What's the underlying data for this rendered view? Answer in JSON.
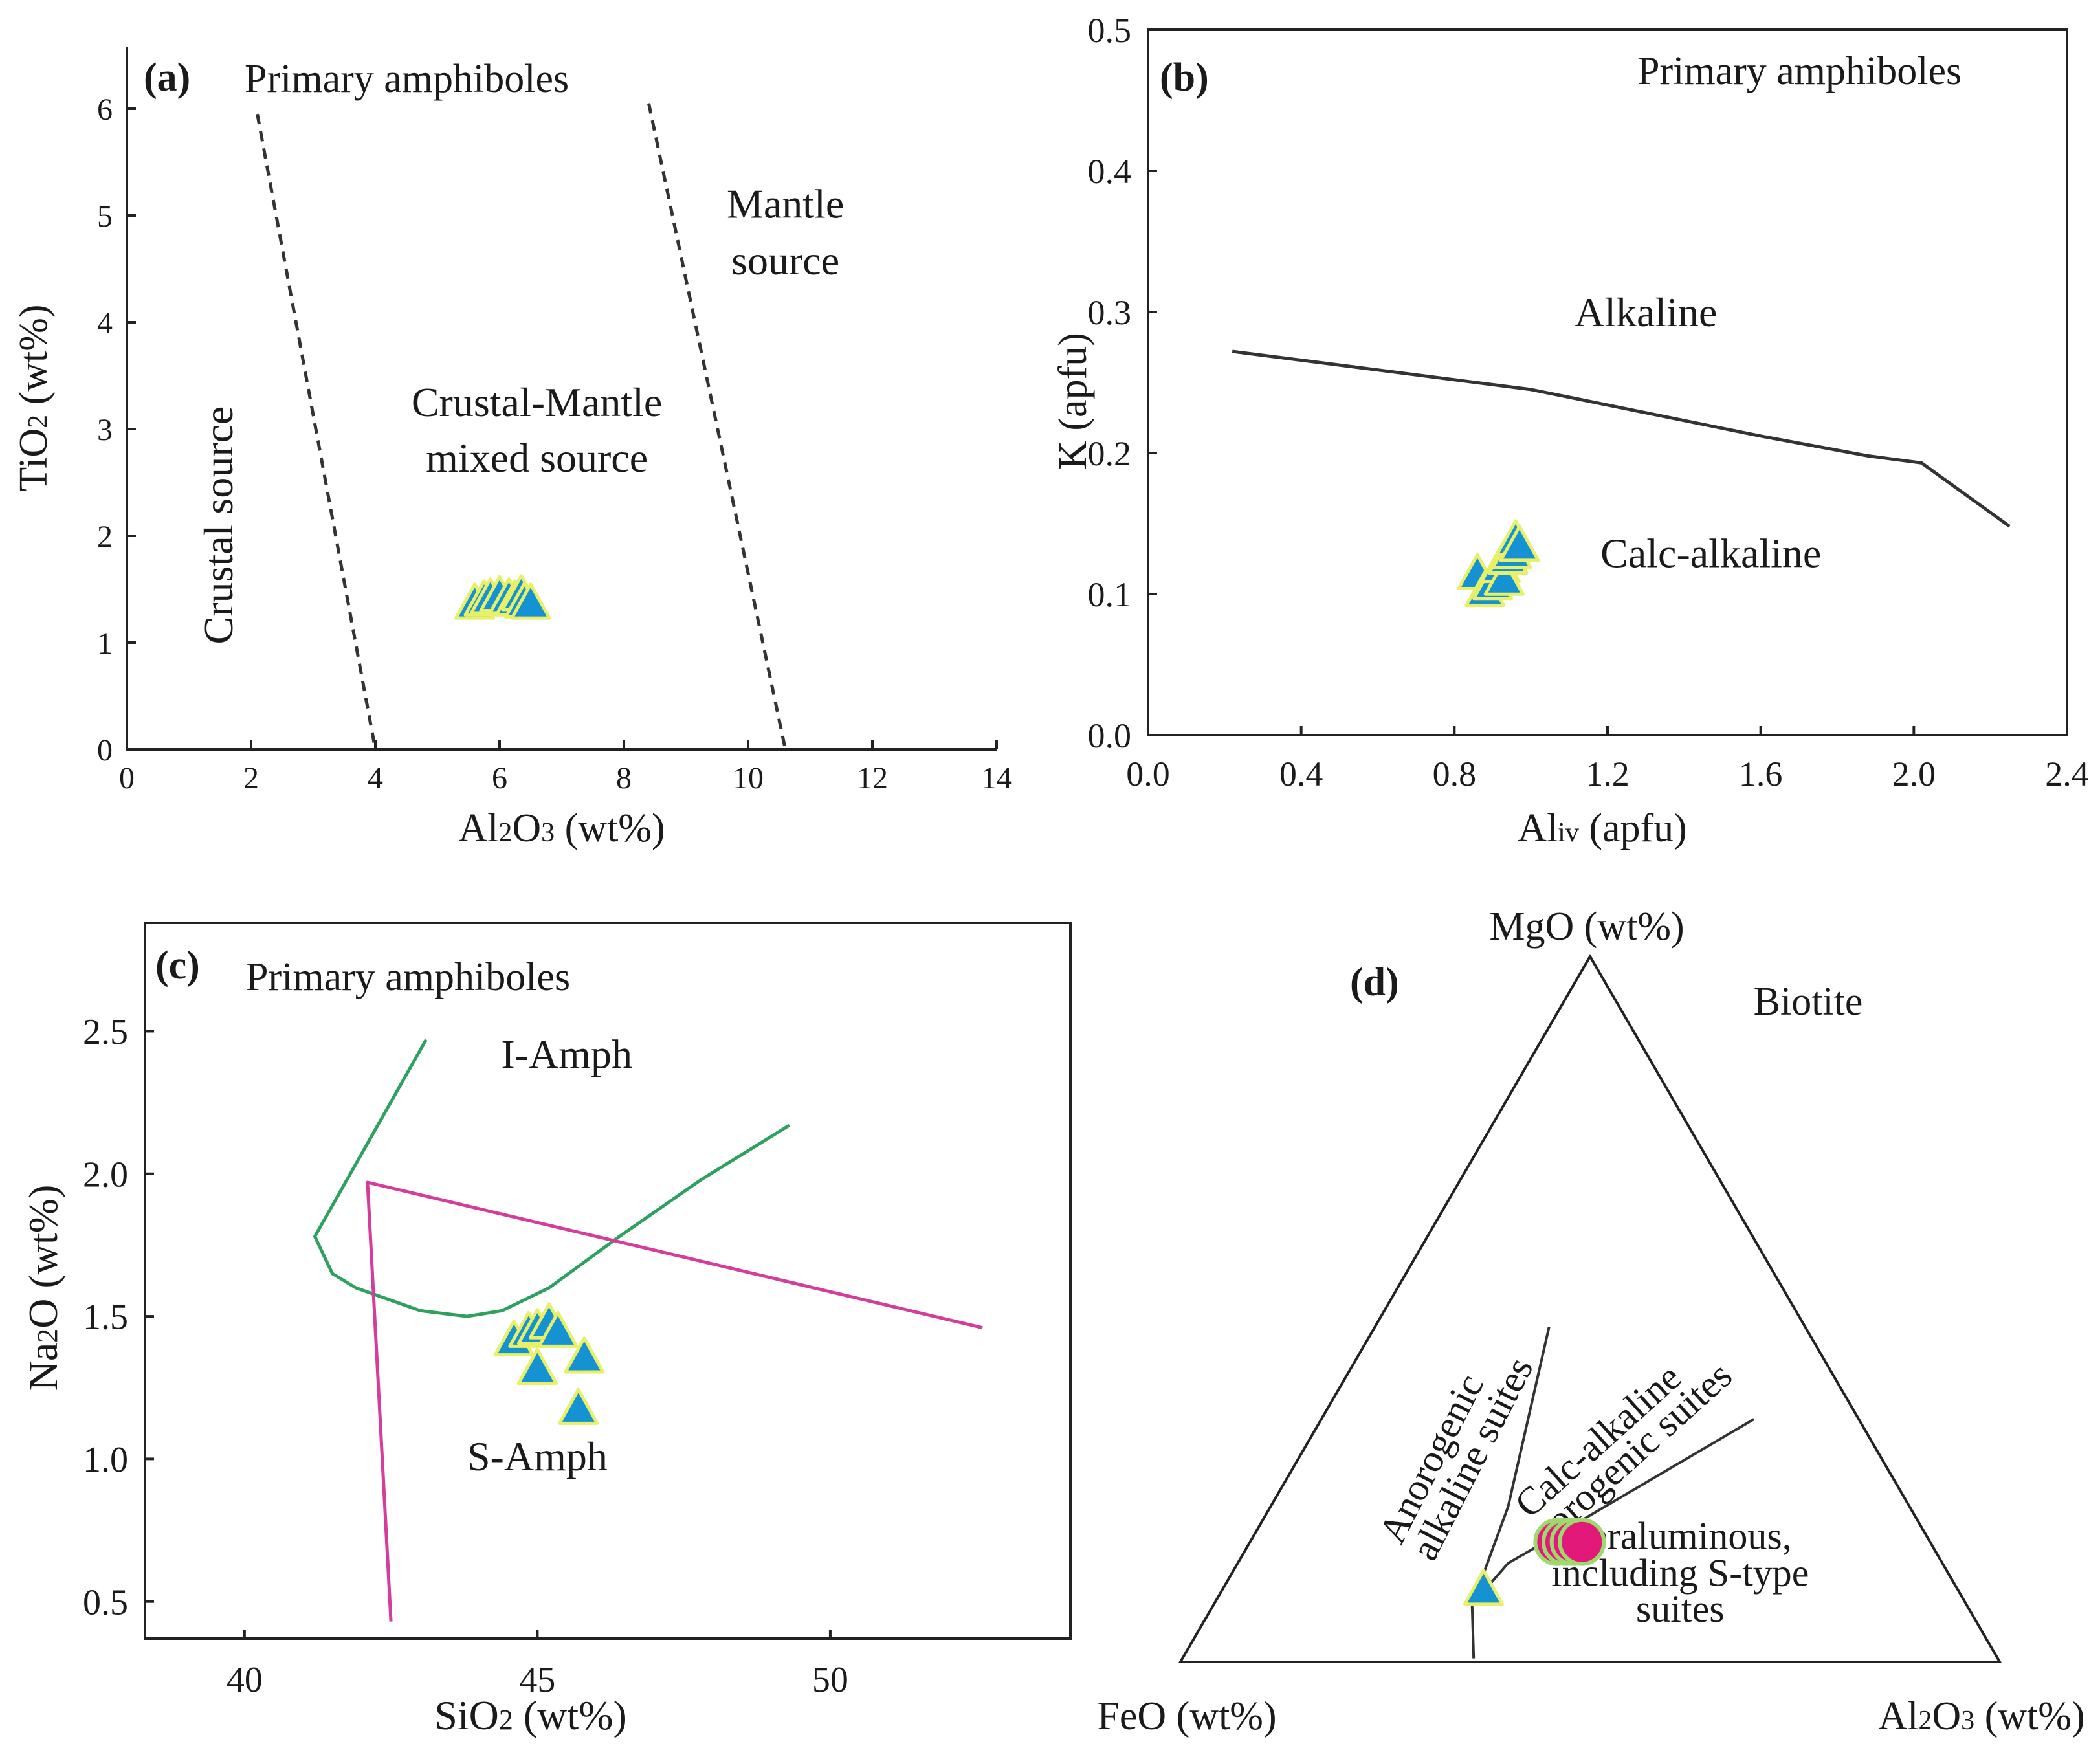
{
  "figure": {
    "colors": {
      "axis": "#222222",
      "marker_fill": "#1592d1",
      "marker_stroke": "#e8f06a",
      "circle_fill": "#e3197a",
      "circle_stroke": "#9fd86f",
      "green_line": "#2ea060",
      "magenta_line": "#d43d9c",
      "boundary": "#333333"
    },
    "icons": {
      "amphibole_marker": "triangle-marker",
      "biotite_marker": "circle-marker"
    }
  },
  "chart_data": [
    {
      "panel_label": "(a)",
      "type": "scatter",
      "title": "Primary amphiboles",
      "xlabel_main": "Al",
      "xlabel_sub": "2",
      "xlabel_mid": "O",
      "xlabel_sub2": "3",
      "xlabel_unit": " (wt%)",
      "ylabel_main": "TiO",
      "ylabel_sub": "2",
      "ylabel_unit": " (wt%)",
      "xlim": [
        0,
        14
      ],
      "ylim": [
        0,
        6.6
      ],
      "xticks": [
        0,
        2,
        4,
        6,
        8,
        10,
        12,
        14
      ],
      "yticks": [
        0,
        1,
        2,
        3,
        4,
        5,
        6
      ],
      "grid": false,
      "boundaries": [
        {
          "style": "dashed",
          "points": [
            [
              2.1,
              5.95
            ],
            [
              4.0,
              0.0
            ]
          ]
        },
        {
          "style": "dashed",
          "points": [
            [
              8.4,
              6.05
            ],
            [
              10.6,
              0.0
            ]
          ]
        }
      ],
      "regions": [
        {
          "text": "Crustal source",
          "x": 1.7,
          "y": 2.1,
          "rotate": -90
        },
        {
          "text": "Crustal-Mantle",
          "x": 6.6,
          "y": 3.12
        },
        {
          "text": "mixed source",
          "x": 6.6,
          "y": 2.6
        },
        {
          "text": "Mantle",
          "x": 10.6,
          "y": 4.98
        },
        {
          "text": "source",
          "x": 10.6,
          "y": 4.45
        }
      ],
      "series": [
        {
          "marker": "triangle",
          "points": [
            [
              5.6,
              1.35
            ],
            [
              5.75,
              1.38
            ],
            [
              5.85,
              1.4
            ],
            [
              6.0,
              1.42
            ],
            [
              6.15,
              1.4
            ],
            [
              6.25,
              1.38
            ],
            [
              6.35,
              1.43
            ],
            [
              6.4,
              1.36
            ],
            [
              6.5,
              1.35
            ]
          ]
        }
      ]
    },
    {
      "panel_label": "(b)",
      "type": "scatter",
      "title": "Primary amphiboles",
      "xlabel_main": "Al",
      "xlabel_sub": "iv",
      "xlabel_unit": " (apfu)",
      "ylabel": "K (apfu)",
      "xlim": [
        0.0,
        2.4
      ],
      "ylim": [
        0.0,
        0.5
      ],
      "xticks": [
        "0.0",
        "0.4",
        "0.8",
        "1.2",
        "1.6",
        "2.0",
        "2.4"
      ],
      "yticks": [
        "0.0",
        "0.1",
        "0.2",
        "0.3",
        "0.4",
        "0.5"
      ],
      "grid": false,
      "boundaries": [
        {
          "style": "solid",
          "points": [
            [
              0.22,
              0.272
            ],
            [
              1.0,
              0.245
            ],
            [
              1.6,
              0.212
            ],
            [
              1.88,
              0.198
            ],
            [
              2.02,
              0.193
            ],
            [
              2.25,
              0.148
            ]
          ]
        }
      ],
      "regions": [
        {
          "text": "Alkaline",
          "x": 1.3,
          "y": 0.29
        },
        {
          "text": "Calc-alkaline",
          "x": 1.47,
          "y": 0.119
        }
      ],
      "series": [
        {
          "marker": "triangle",
          "points": [
            [
              0.86,
              0.113
            ],
            [
              0.88,
              0.101
            ],
            [
              0.9,
              0.106
            ],
            [
              0.92,
              0.118
            ],
            [
              0.93,
              0.109
            ],
            [
              0.94,
              0.124
            ],
            [
              0.95,
              0.128
            ],
            [
              0.96,
              0.137
            ],
            [
              0.97,
              0.133
            ]
          ]
        }
      ]
    },
    {
      "panel_label": "(c)",
      "type": "scatter",
      "title": "Primary amphiboles",
      "xlabel_main": "SiO",
      "xlabel_sub": "2",
      "xlabel_unit": " (wt%)",
      "ylabel_main": "Na",
      "ylabel_sub": "2",
      "ylabel_unit": "O (wt%)",
      "xlim": [
        38.3,
        54.1
      ],
      "ylim": [
        0.37,
        2.88
      ],
      "xticks": [
        "40",
        "45",
        "50"
      ],
      "yticks": [
        "0.5",
        "1.0",
        "1.5",
        "2.0",
        "2.5"
      ],
      "grid": false,
      "boundaries": [
        {
          "style": "solid",
          "color": "green",
          "points": [
            [
              43.1,
              2.47
            ],
            [
              41.2,
              1.78
            ],
            [
              41.5,
              1.65
            ],
            [
              41.9,
              1.6
            ],
            [
              43.0,
              1.52
            ],
            [
              43.8,
              1.5
            ],
            [
              44.4,
              1.52
            ],
            [
              45.2,
              1.6
            ],
            [
              46.4,
              1.78
            ],
            [
              47.8,
              1.98
            ],
            [
              49.3,
              2.17
            ]
          ]
        },
        {
          "style": "solid",
          "color": "magenta",
          "points": [
            [
              42.5,
              0.43
            ],
            [
              42.1,
              1.97
            ],
            [
              52.6,
              1.46
            ]
          ]
        }
      ],
      "regions": [
        {
          "text": "I-Amph",
          "x": 45.5,
          "y": 2.37
        },
        {
          "text": "S-Amph",
          "x": 45.0,
          "y": 0.96
        }
      ],
      "series": [
        {
          "marker": "triangle",
          "points": [
            [
              44.6,
              1.41
            ],
            [
              44.85,
              1.44
            ],
            [
              45.0,
              1.45
            ],
            [
              45.2,
              1.47
            ],
            [
              45.35,
              1.44
            ],
            [
              45.0,
              1.31
            ],
            [
              45.8,
              1.35
            ],
            [
              45.7,
              1.17
            ]
          ]
        }
      ]
    },
    {
      "panel_label": "(d)",
      "type": "ternary",
      "title": "Biotite",
      "apex_top": "MgO (wt%)",
      "apex_left": "FeO (wt%)",
      "apex_right_main": "Al",
      "apex_right_sub": "2",
      "apex_right_mid": "O",
      "apex_right_sub2": "3",
      "apex_right_unit": " (wt%)",
      "boundaries": [
        {
          "points": [
            [
              0.356,
              0.081
            ],
            [
              0.358,
              0.005
            ]
          ]
        },
        {
          "points": [
            [
              0.356,
              0.081
            ],
            [
              0.4,
              0.14
            ],
            [
              0.43,
              0.16
            ]
          ]
        },
        {
          "points": [
            [
              0.356,
              0.081
            ],
            [
              0.4,
              0.22
            ],
            [
              0.45,
              0.475
            ]
          ]
        },
        {
          "points": [
            [
              0.43,
              0.16
            ],
            [
              0.7,
              0.344
            ]
          ]
        }
      ],
      "regions": [
        {
          "text": "Anorogenic",
          "x": 0.32,
          "y": 0.28,
          "rotate": -63
        },
        {
          "text": "alkaline suites",
          "x": 0.37,
          "y": 0.28,
          "rotate": -63
        },
        {
          "text": "Calc-alkaline",
          "x": 0.52,
          "y": 0.3,
          "rotate": -42
        },
        {
          "text": "orogenic suites",
          "x": 0.57,
          "y": 0.29,
          "rotate": -42
        },
        {
          "text": "Peraluminous,",
          "x": 0.61,
          "y": 0.16
        },
        {
          "text": "including S-type",
          "x": 0.61,
          "y": 0.108
        },
        {
          "text": "suites",
          "x": 0.61,
          "y": 0.057
        }
      ],
      "series": [
        {
          "marker": "triangle",
          "points": [
            [
              0.37,
              0.1
            ]
          ]
        },
        {
          "marker": "circle",
          "points": [
            [
              0.46,
              0.17
            ],
            [
              0.47,
              0.17
            ],
            [
              0.48,
              0.17
            ],
            [
              0.49,
              0.17
            ]
          ]
        }
      ]
    }
  ]
}
